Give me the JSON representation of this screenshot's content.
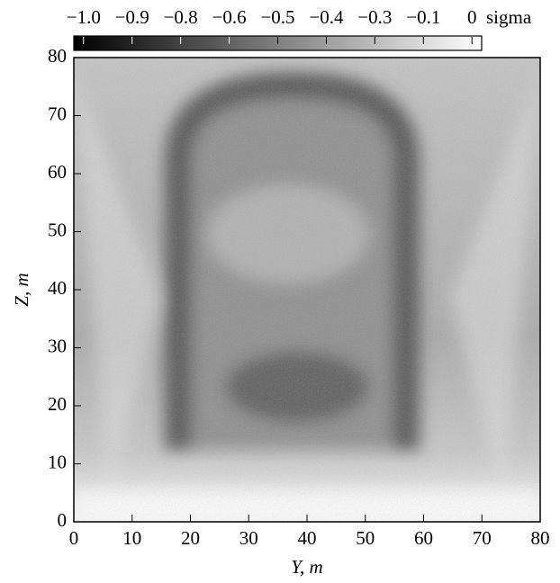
{
  "chart_data": {
    "type": "heatmap",
    "colorbar": {
      "label": "sigma",
      "clim": [
        -1.025,
        0.025
      ],
      "ticks": [
        {
          "value": -1.0,
          "label": "−1.0"
        },
        {
          "value": -0.875,
          "label": "−0.9"
        },
        {
          "value": -0.75,
          "label": "−0.8"
        },
        {
          "value": -0.625,
          "label": "−0.6"
        },
        {
          "value": -0.5,
          "label": "−0.5"
        },
        {
          "value": -0.375,
          "label": "−0.4"
        },
        {
          "value": -0.25,
          "label": "−0.3"
        },
        {
          "value": -0.125,
          "label": "−0.1"
        },
        0
      ]
    },
    "x_label": "Y, m",
    "y_label": "Z, m",
    "xlim": [
      0,
      80
    ],
    "ylim": [
      0,
      80
    ],
    "xticks": [
      0,
      10,
      20,
      30,
      40,
      50,
      60,
      70,
      80
    ],
    "yticks": [
      0,
      10,
      20,
      30,
      40,
      50,
      60,
      70,
      80
    ]
  }
}
